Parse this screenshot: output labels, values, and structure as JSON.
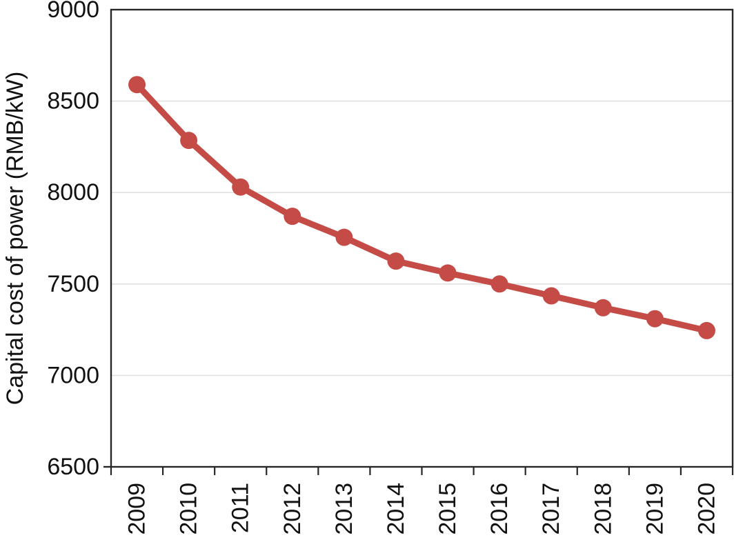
{
  "chart_data": {
    "type": "line",
    "x": [
      "2009",
      "2010",
      "2011",
      "2012",
      "2013",
      "2014",
      "2015",
      "2016",
      "2017",
      "2018",
      "2019",
      "2020"
    ],
    "series": [
      {
        "name": "Capital cost of power",
        "values": [
          8590,
          8285,
          8030,
          7870,
          7755,
          7625,
          7560,
          7500,
          7435,
          7370,
          7310,
          7245
        ]
      }
    ],
    "title": "",
    "xlabel": "",
    "ylabel": "Capital cost of power (RMB/kW)",
    "ylim": [
      6500,
      9000
    ],
    "yticks": [
      6500,
      7000,
      7500,
      8000,
      8500,
      9000
    ],
    "grid": "horizontal-light",
    "legend": "none",
    "marker": "circle",
    "x_label_rotation_deg": -90
  },
  "colors": {
    "line": "#c54c46",
    "marker": "#c54c46",
    "axis": "#262626",
    "gridline": "#e0e0e0",
    "text": "#111111",
    "background": "#ffffff"
  }
}
